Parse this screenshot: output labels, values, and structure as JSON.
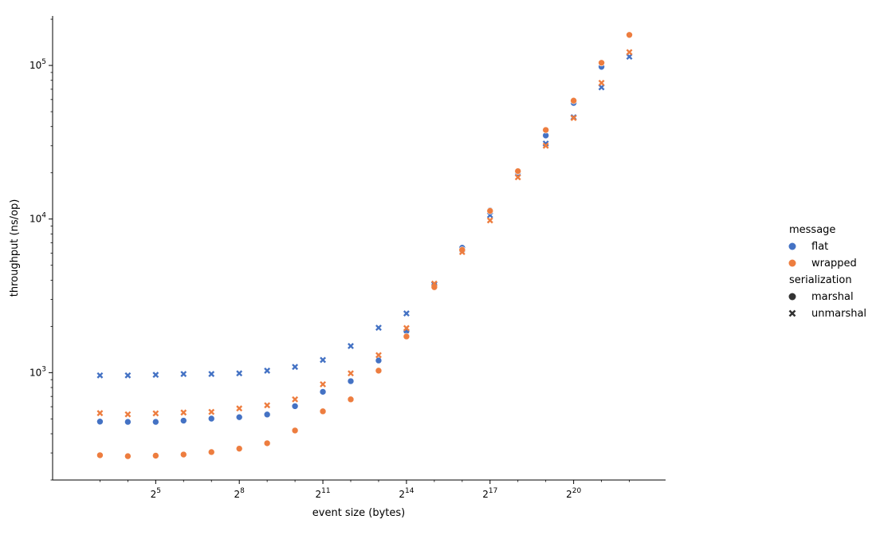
{
  "chart_data": {
    "type": "scatter",
    "xlabel": "event size (bytes)",
    "ylabel": "throughput (ns/op)",
    "xscale": "log2",
    "yscale": "log10",
    "xlim_exp": [
      1.3,
      23.3
    ],
    "ylim": [
      200,
      210000
    ],
    "grid": false,
    "legend": {
      "placement": "right",
      "hue_title": "message",
      "style_title": "serialization",
      "hue_entries": [
        {
          "label": "flat",
          "color": "#4472c4"
        },
        {
          "label": "wrapped",
          "color": "#ed7d3f"
        }
      ],
      "style_entries": [
        {
          "label": "marshal",
          "marker": "circle"
        },
        {
          "label": "unmarshal",
          "marker": "x"
        }
      ]
    },
    "x_ticks": [
      {
        "base": "2",
        "exp": "5",
        "value_exp": 5
      },
      {
        "base": "2",
        "exp": "8",
        "value_exp": 8
      },
      {
        "base": "2",
        "exp": "11",
        "value_exp": 11
      },
      {
        "base": "2",
        "exp": "14",
        "value_exp": 14
      },
      {
        "base": "2",
        "exp": "17",
        "value_exp": 17
      },
      {
        "base": "2",
        "exp": "20",
        "value_exp": 20
      }
    ],
    "y_ticks": [
      {
        "base": "10",
        "exp": "3",
        "value": 1000
      },
      {
        "base": "10",
        "exp": "4",
        "value": 10000
      },
      {
        "base": "10",
        "exp": "5",
        "value": 100000
      }
    ],
    "x_exponents": [
      3,
      4,
      5,
      6,
      7,
      8,
      9,
      10,
      11,
      12,
      13,
      14,
      15,
      16,
      17,
      18,
      19,
      20,
      21,
      22
    ],
    "series": [
      {
        "message": "flat",
        "serialization": "marshal",
        "color": "#4472c4",
        "marker": "circle",
        "values": [
          480,
          478,
          478,
          487,
          502,
          513,
          534,
          605,
          750,
          880,
          1200,
          1860,
          3700,
          6500,
          11400,
          20000,
          35000,
          57000,
          98000,
          null
        ]
      },
      {
        "message": "flat",
        "serialization": "unmarshal",
        "color": "#4472c4",
        "marker": "x",
        "values": [
          960,
          960,
          968,
          980,
          980,
          990,
          1030,
          1090,
          1210,
          1490,
          1960,
          2430,
          3750,
          6300,
          10600,
          19800,
          31000,
          46000,
          72000,
          114000
        ]
      },
      {
        "message": "wrapped",
        "serialization": "marshal",
        "color": "#ed7d3f",
        "marker": "circle",
        "values": [
          290,
          286,
          288,
          293,
          304,
          320,
          347,
          420,
          560,
          670,
          1030,
          1720,
          3600,
          6300,
          11300,
          20500,
          38000,
          59000,
          104000,
          158000
        ]
      },
      {
        "message": "wrapped",
        "serialization": "unmarshal",
        "color": "#ed7d3f",
        "marker": "x",
        "values": [
          545,
          535,
          543,
          550,
          555,
          585,
          613,
          670,
          840,
          990,
          1300,
          1950,
          3800,
          6100,
          9800,
          18700,
          30000,
          45500,
          77000,
          122000
        ]
      }
    ]
  }
}
